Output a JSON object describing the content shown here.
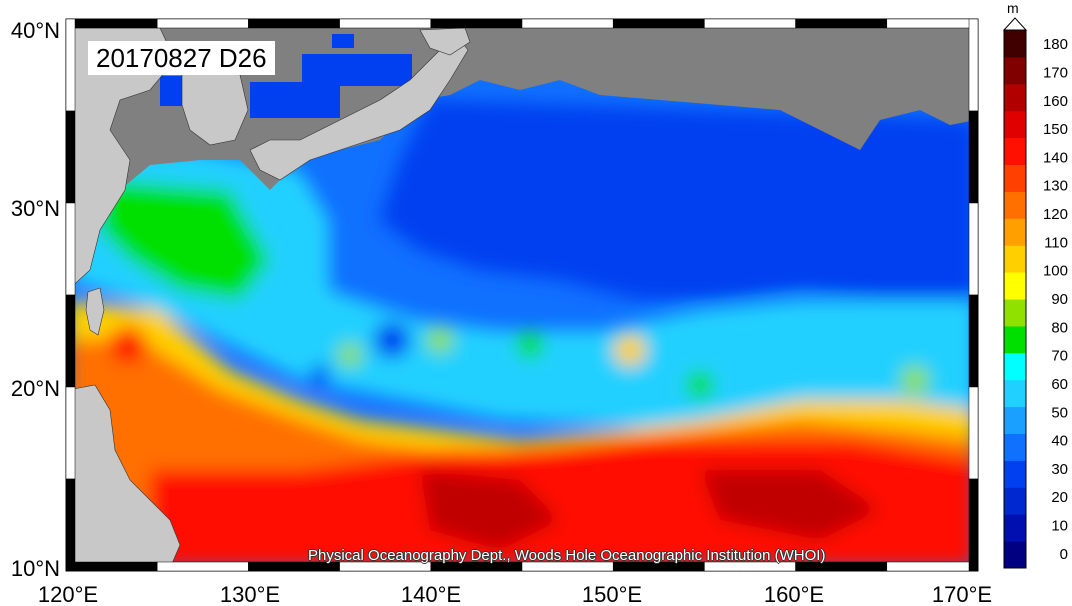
{
  "title": "20170827 D26",
  "credit": "Physical Oceanography Dept., Woods Hole Oceanographic Institution (WHOI)",
  "map": {
    "lon_range": [
      120,
      170
    ],
    "lat_range": [
      10,
      40
    ],
    "lon_ticks": [
      "120°E",
      "130°E",
      "140°E",
      "150°E",
      "160°E",
      "170°E"
    ],
    "lat_ticks": [
      "10°N",
      "20°N",
      "30°N",
      "40°N"
    ],
    "land_color": "#c8c8c8",
    "no_data_color": "#808080"
  },
  "colorbar": {
    "unit": "m",
    "ticks": [
      "0",
      "10",
      "20",
      "30",
      "40",
      "50",
      "60",
      "70",
      "80",
      "90",
      "100",
      "110",
      "120",
      "130",
      "140",
      "150",
      "160",
      "170",
      "180"
    ],
    "colors": [
      "#000080",
      "#0010b0",
      "#0028d0",
      "#0040f0",
      "#1070ff",
      "#1aa0ff",
      "#20d0ff",
      "#00ffff",
      "#00e000",
      "#90e000",
      "#ffff00",
      "#ffd000",
      "#ffa000",
      "#ff7000",
      "#ff4000",
      "#ff1000",
      "#e00000",
      "#b00000",
      "#800000",
      "#400000"
    ],
    "extend_top": true
  }
}
